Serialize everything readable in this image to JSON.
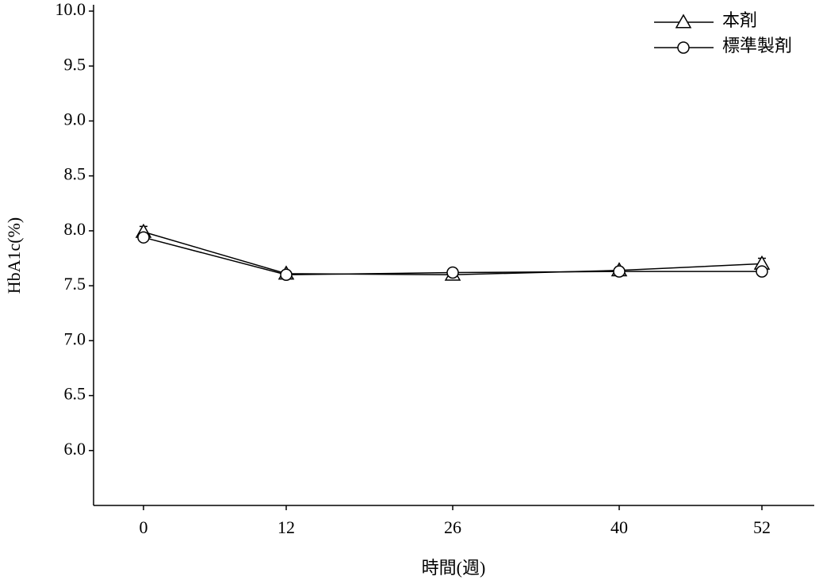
{
  "chart_data": {
    "type": "line",
    "x_label": "時間(週)",
    "y_label": "HbA1c(%)",
    "x": [
      0,
      12,
      26,
      40,
      52
    ],
    "xlim": [
      -4.2,
      56.4
    ],
    "xticks": [
      0,
      12,
      26,
      40,
      52
    ],
    "ylim": [
      5.5,
      10.0
    ],
    "yticks": [
      {
        "value": 6,
        "label": "6.0"
      },
      6.5,
      {
        "value": 7,
        "label": "7.0"
      },
      7.5,
      {
        "value": 8,
        "label": "8.0"
      },
      8.5,
      {
        "value": 9,
        "label": "9.0"
      },
      9.5,
      {
        "value": 10,
        "label": "10.0"
      }
    ],
    "legend": "upper right",
    "series": [
      {
        "name": "本剤",
        "color": "#000000",
        "marker": "triangle",
        "values": [
          7.99,
          7.61,
          7.6,
          7.64,
          7.7
        ],
        "errors": [
          0.05,
          0.02,
          0.02,
          0.03,
          0.05
        ]
      },
      {
        "name": "標準製剤",
        "color": "#000000",
        "marker": "circle",
        "values": [
          7.94,
          7.6,
          7.62,
          7.63,
          7.63
        ],
        "errors": [
          0.03,
          0.02,
          0.02,
          0.02,
          0.03
        ]
      }
    ]
  }
}
